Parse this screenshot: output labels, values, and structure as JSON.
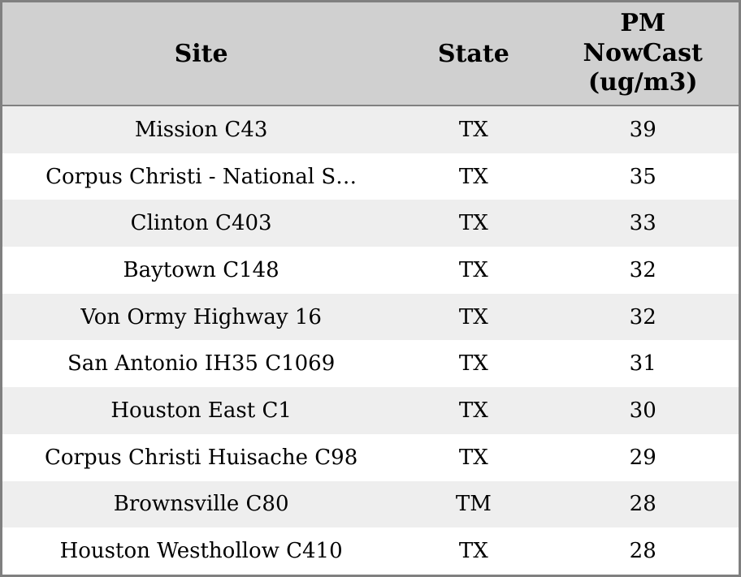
{
  "chart_data": {
    "type": "table",
    "columns": [
      "Site",
      "State",
      "PM NowCast (ug/m3)"
    ],
    "rows": [
      [
        "Mission C43",
        "TX",
        39
      ],
      [
        "Corpus Christi - National S…",
        "TX",
        35
      ],
      [
        "Clinton C403",
        "TX",
        33
      ],
      [
        "Baytown C148",
        "TX",
        32
      ],
      [
        "Von Ormy Highway 16",
        "TX",
        32
      ],
      [
        "San Antonio IH35 C1069",
        "TX",
        31
      ],
      [
        "Houston East C1",
        "TX",
        30
      ],
      [
        "Corpus Christi Huisache C98",
        "TX",
        29
      ],
      [
        "Brownsville C80",
        "TM",
        28
      ],
      [
        "Houston Westhollow C410",
        "TX",
        28
      ]
    ],
    "title": "",
    "legend": "none",
    "grid": "row-striping"
  },
  "colors": {
    "header_bg": "#d0d0d0",
    "row_stripe_bg": "#eeeeee",
    "row_bg": "#ffffff",
    "border": "#808080",
    "text": "#000000"
  }
}
